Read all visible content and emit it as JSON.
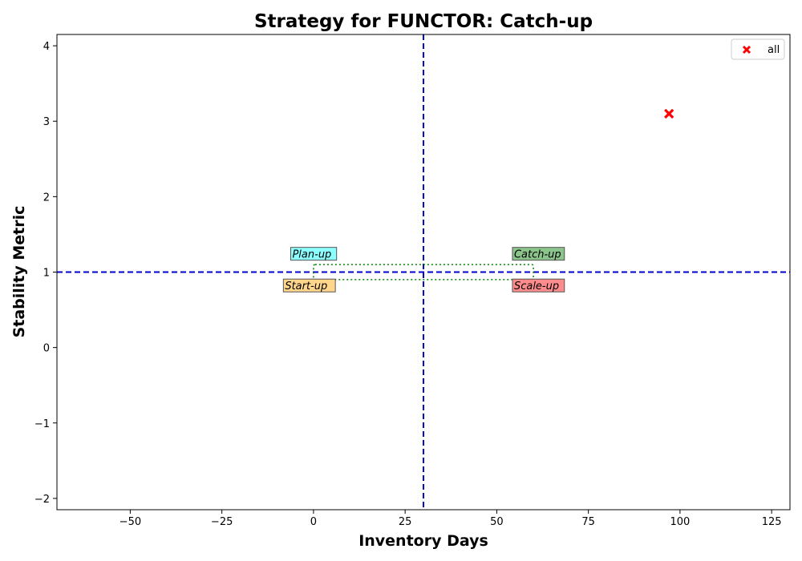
{
  "chart_data": {
    "type": "scatter",
    "title": "Strategy for FUNCTOR: Catch-up",
    "xlabel": "Inventory Days",
    "ylabel": "Stability Metric",
    "xlim": [
      -70,
      130
    ],
    "ylim": [
      -2.15,
      4.15
    ],
    "x_ticks": [
      -50,
      -25,
      0,
      25,
      50,
      75,
      100,
      125
    ],
    "y_ticks": [
      -2,
      -1,
      0,
      1,
      2,
      3,
      4
    ],
    "series": [
      {
        "name": "all",
        "marker": "x-filled",
        "color": "#ff0000",
        "points": [
          {
            "x": 97,
            "y": 3.1
          }
        ]
      }
    ],
    "reference_lines": {
      "x": 30,
      "y": 1,
      "color": "#0000cc",
      "style": "dashed"
    },
    "highlight_box": {
      "x0": 0,
      "x1": 60,
      "y0": 0.9,
      "y1": 1.1,
      "color": "#008000",
      "style": "dotted"
    },
    "quadrant_labels": [
      {
        "text": "Plan-up",
        "x": -6,
        "y": 1.2,
        "bg": "#80ffff"
      },
      {
        "text": "Catch-up",
        "x": 54.5,
        "y": 1.2,
        "bg": "#7fbf7f"
      },
      {
        "text": "Start-up",
        "x": -8,
        "y": 0.78,
        "bg": "#ffd27f"
      },
      {
        "text": "Scale-up",
        "x": 54.5,
        "y": 0.78,
        "bg": "#ff7f7f"
      }
    ],
    "legend": {
      "position": "top-right",
      "entries": [
        "all"
      ]
    },
    "grid": false
  }
}
